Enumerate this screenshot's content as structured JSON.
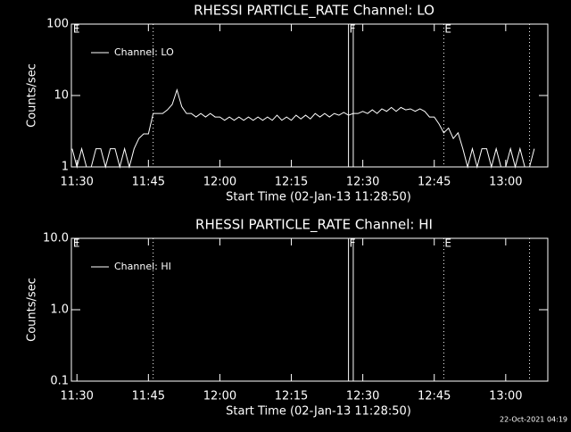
{
  "charts": [
    {
      "chart_data": {
        "type": "line",
        "title": "RHESSI PARTICLE_RATE Channel: LO",
        "xlabel": "Start Time (02-Jan-13 11:28:50)",
        "ylabel": "Counts/sec",
        "xlim": [
          "11:28:50",
          "13:08:50"
        ],
        "xticks": [
          "11:30",
          "11:45",
          "12:00",
          "12:15",
          "12:30",
          "12:45",
          "13:00"
        ],
        "ylim": [
          1,
          100
        ],
        "yticks": [
          1,
          10,
          100
        ],
        "log_y": true,
        "legend": "upper left",
        "series": [
          {
            "name": "Channel: LO",
            "color": "#ffffff",
            "x": [
              "11:29",
              "11:30",
              "11:31",
              "11:32",
              "11:33",
              "11:34",
              "11:35",
              "11:36",
              "11:37",
              "11:38",
              "11:39",
              "11:40",
              "11:41",
              "11:42",
              "11:43",
              "11:44",
              "11:45",
              "11:46",
              "11:47",
              "11:48",
              "11:49",
              "11:50",
              "11:51",
              "11:52",
              "11:53",
              "11:54",
              "11:55",
              "11:56",
              "11:57",
              "11:58",
              "11:59",
              "12:00",
              "12:01",
              "12:02",
              "12:03",
              "12:04",
              "12:05",
              "12:06",
              "12:07",
              "12:08",
              "12:09",
              "12:10",
              "12:11",
              "12:12",
              "12:13",
              "12:14",
              "12:15",
              "12:16",
              "12:17",
              "12:18",
              "12:19",
              "12:20",
              "12:21",
              "12:22",
              "12:23",
              "12:24",
              "12:25",
              "12:26",
              "12:27",
              "12:28",
              "12:29",
              "12:30",
              "12:31",
              "12:32",
              "12:33",
              "12:34",
              "12:35",
              "12:36",
              "12:37",
              "12:38",
              "12:39",
              "12:40",
              "12:41",
              "12:42",
              "12:43",
              "12:44",
              "12:45",
              "12:46",
              "12:47",
              "12:48",
              "12:49",
              "12:50",
              "12:51",
              "12:52",
              "12:53",
              "12:54",
              "12:55",
              "12:56",
              "12:57",
              "12:58",
              "12:59",
              "13:00",
              "13:01",
              "13:02",
              "13:03",
              "13:04",
              "13:05",
              "13:06"
            ],
            "values": [
              1.8,
              1,
              1.8,
              1,
              1,
              1.8,
              1.8,
              1,
              1.8,
              1.8,
              1,
              1.8,
              1,
              1.8,
              2.5,
              2.9,
              2.9,
              5.6,
              5.6,
              5.6,
              6.3,
              7.5,
              12,
              7,
              5.6,
              5.6,
              5,
              5.6,
              5,
              5.6,
              5,
              5,
              4.5,
              5,
              4.5,
              5,
              4.5,
              5,
              4.5,
              5,
              4.5,
              5,
              4.5,
              5.3,
              4.5,
              5,
              4.5,
              5.3,
              4.7,
              5.3,
              4.7,
              5.6,
              5,
              5.6,
              5,
              5.6,
              5.3,
              5.8,
              5.3,
              5.6,
              5.6,
              6,
              5.6,
              6.3,
              5.6,
              6.5,
              6,
              6.8,
              6,
              6.8,
              6.3,
              6.5,
              6,
              6.5,
              6,
              5,
              5,
              4,
              3,
              3.5,
              2.5,
              3,
              1.8,
              1,
              1.8,
              1,
              1.8,
              1.8,
              1,
              1.8,
              1,
              1,
              1.8,
              1,
              1.8,
              1,
              1,
              1.8
            ]
          }
        ],
        "markers": [
          {
            "x": "11:46",
            "style": "dotted"
          },
          {
            "x": "12:27",
            "style": "solid"
          },
          {
            "x": "12:28",
            "style": "solid"
          },
          {
            "x": "12:47",
            "style": "dotted"
          },
          {
            "x": "13:05",
            "style": "dotted"
          }
        ],
        "flags": [
          {
            "x": "11:29",
            "label": "E"
          },
          {
            "x": "12:27",
            "label": "F"
          },
          {
            "x": "12:47",
            "label": "E"
          }
        ]
      }
    },
    {
      "chart_data": {
        "type": "line",
        "title": "RHESSI PARTICLE_RATE Channel: HI",
        "xlabel": "Start Time (02-Jan-13 11:28:50)",
        "ylabel": "Counts/sec",
        "xlim": [
          "11:28:50",
          "13:08:50"
        ],
        "xticks": [
          "11:30",
          "11:45",
          "12:00",
          "12:15",
          "12:30",
          "12:45",
          "13:00"
        ],
        "ylim": [
          0.1,
          10
        ],
        "yticks": [
          0.1,
          {
            "value": 1,
            "label": "1.0"
          },
          {
            "value": 10,
            "label": "10.0"
          }
        ],
        "log_y": true,
        "legend": "upper left",
        "series": [
          {
            "name": "Channel: HI",
            "color": "#ffffff",
            "x": [],
            "values": []
          }
        ],
        "markers": [
          {
            "x": "11:46",
            "style": "dotted"
          },
          {
            "x": "12:27",
            "style": "solid"
          },
          {
            "x": "12:28",
            "style": "solid"
          },
          {
            "x": "12:47",
            "style": "dotted"
          },
          {
            "x": "13:05",
            "style": "dotted"
          }
        ],
        "flags": [
          {
            "x": "11:29",
            "label": "E"
          },
          {
            "x": "12:27",
            "label": "F"
          },
          {
            "x": "12:47",
            "label": "E"
          }
        ]
      }
    }
  ],
  "footer": "22-Oct-2021 04:19"
}
